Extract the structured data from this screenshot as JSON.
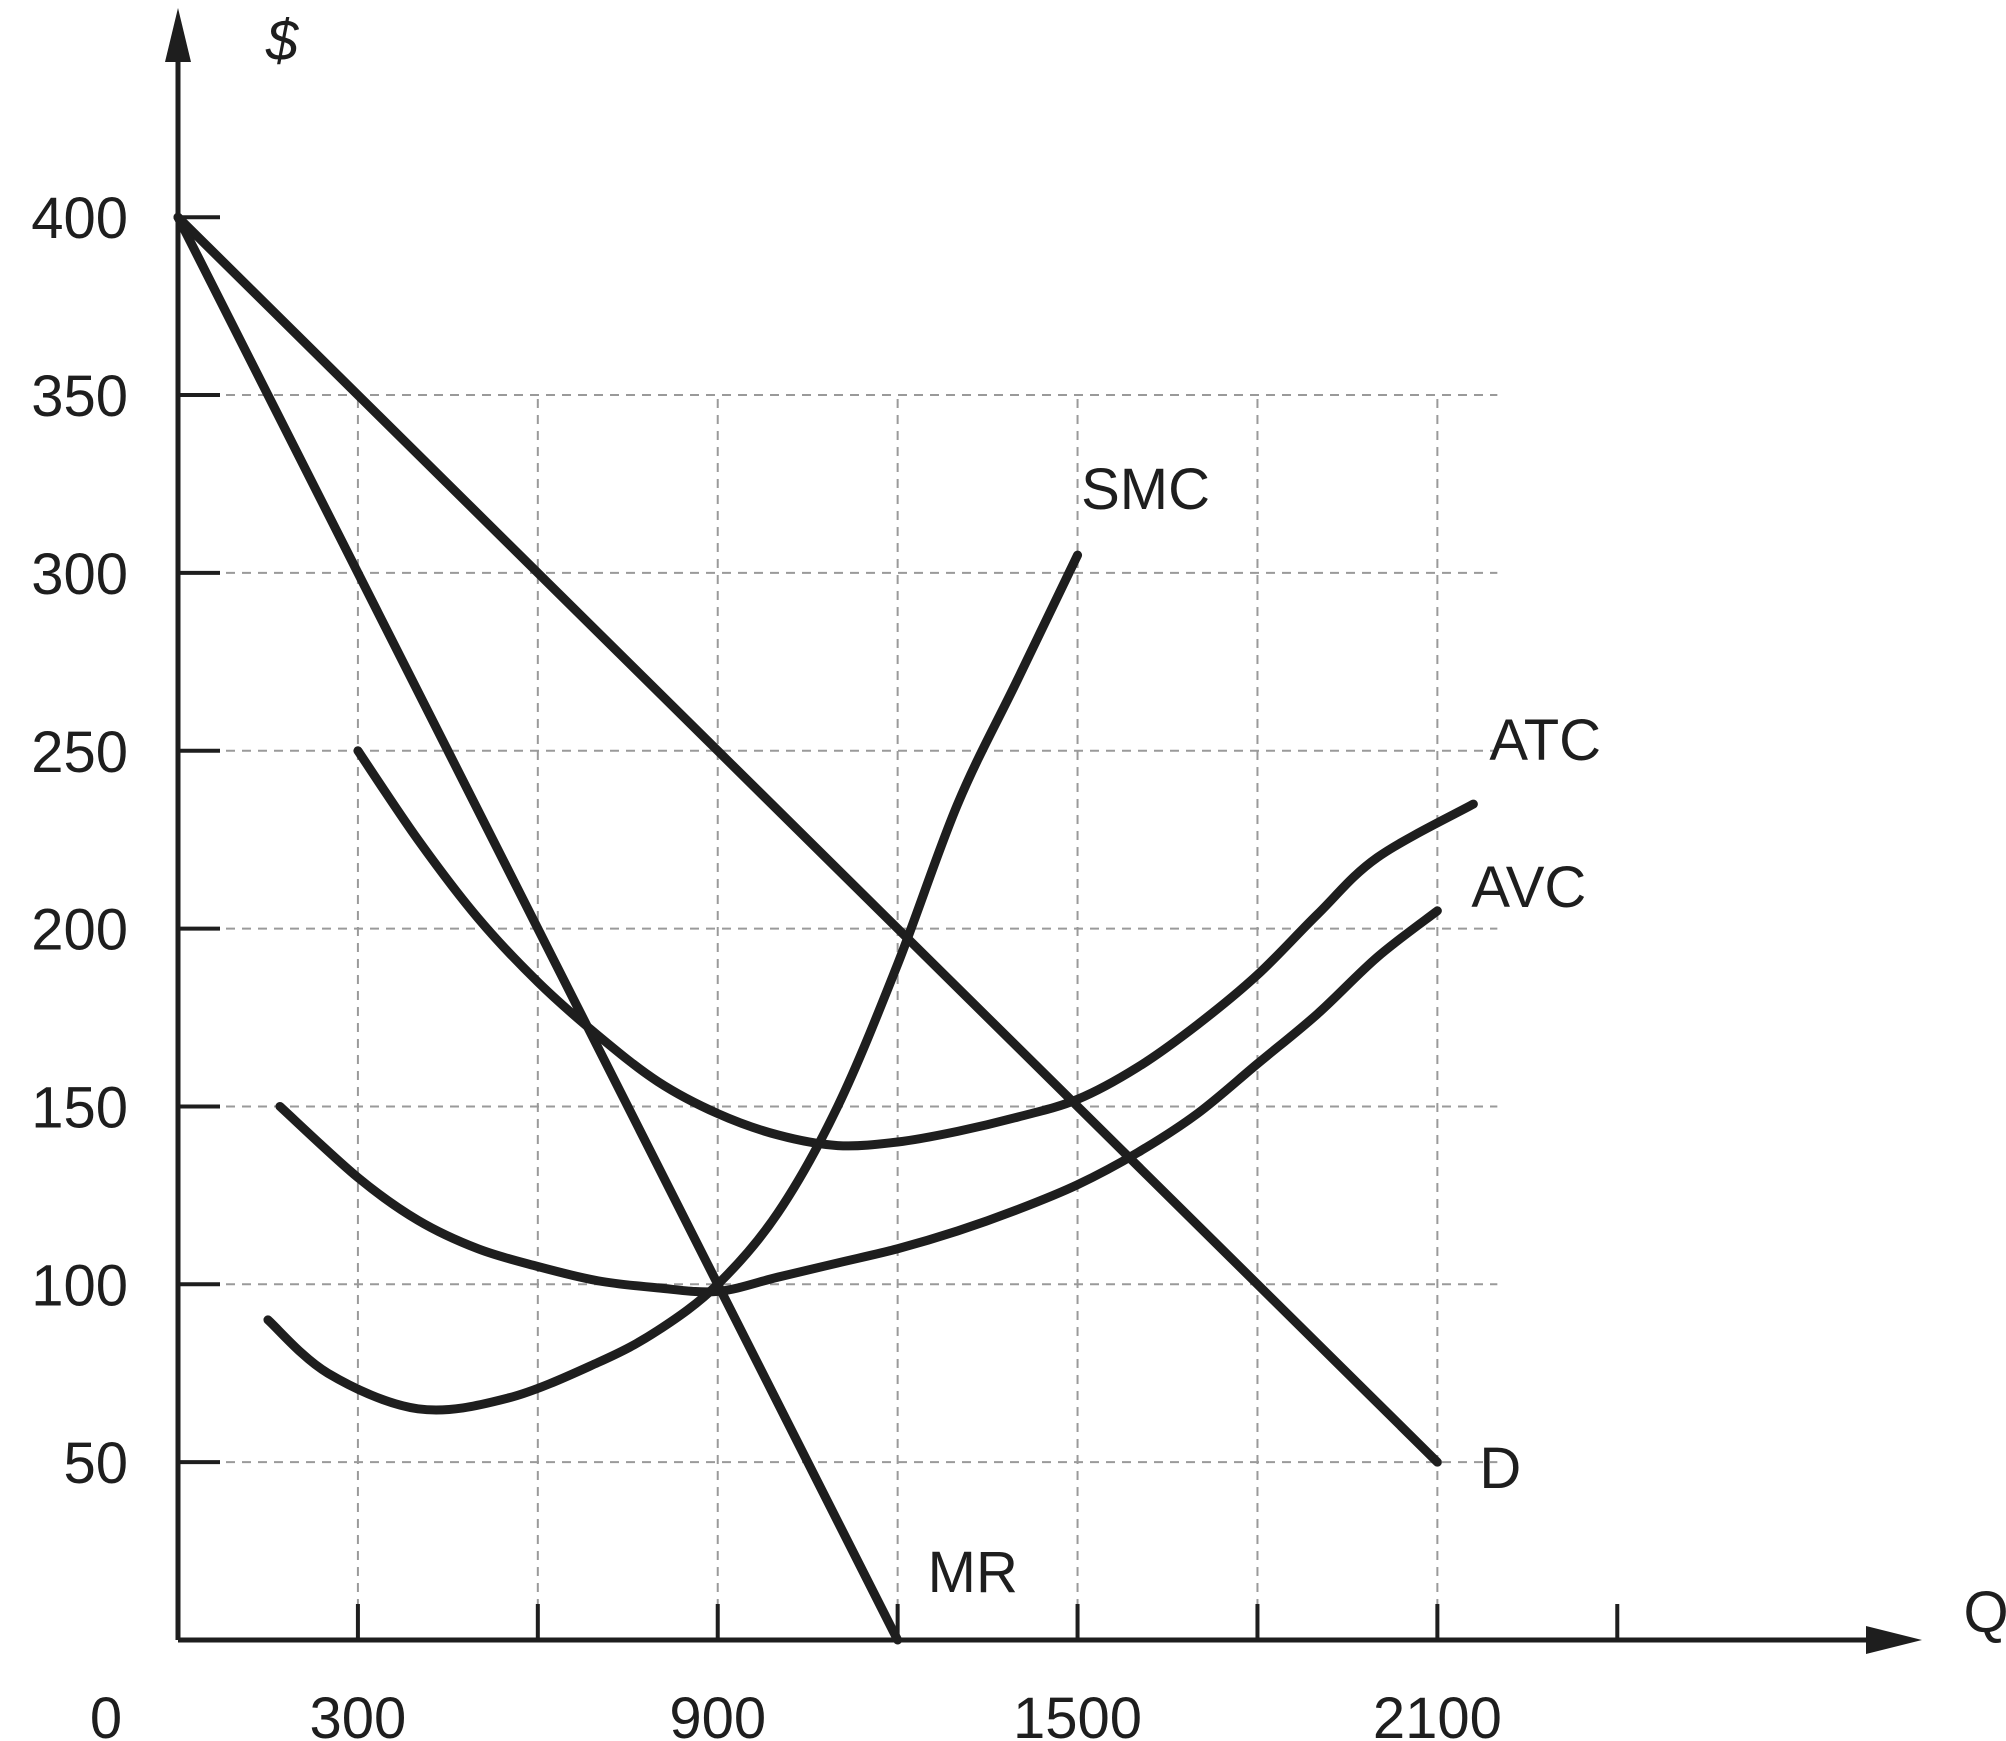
{
  "chart_data": {
    "type": "line",
    "xlabel": "Q",
    "ylabel": "$",
    "origin_label": "0",
    "xlim": [
      0,
      2400
    ],
    "ylim": [
      0,
      400
    ],
    "x_ticks": [
      300,
      600,
      900,
      1200,
      1500,
      1800,
      2100,
      2400
    ],
    "x_tick_labels": [
      {
        "x": 300,
        "label": "300"
      },
      {
        "x": 900,
        "label": "900"
      },
      {
        "x": 1500,
        "label": "1500"
      },
      {
        "x": 2100,
        "label": "2100"
      }
    ],
    "y_ticks": [
      50,
      100,
      150,
      200,
      250,
      300,
      350,
      400
    ],
    "y_tick_labels": [
      "50",
      "100",
      "150",
      "200",
      "250",
      "300",
      "350",
      "400"
    ],
    "grid": {
      "vertical_x": [
        300,
        600,
        900,
        1200,
        1500,
        1800,
        2100
      ],
      "horizontal_y": [
        50,
        100,
        150,
        200,
        250,
        300,
        350
      ],
      "x_extent": 2200,
      "y_extent": 350
    },
    "series": [
      {
        "name": "D",
        "points": [
          [
            0,
            400
          ],
          [
            2100,
            50
          ]
        ]
      },
      {
        "name": "MR",
        "points": [
          [
            0,
            400
          ],
          [
            1200,
            0
          ]
        ]
      },
      {
        "name": "SMC",
        "points": [
          [
            150,
            90
          ],
          [
            250,
            75
          ],
          [
            400,
            65
          ],
          [
            550,
            68
          ],
          [
            700,
            78
          ],
          [
            800,
            87
          ],
          [
            900,
            100
          ],
          [
            1000,
            120
          ],
          [
            1100,
            150
          ],
          [
            1200,
            190
          ],
          [
            1300,
            235
          ],
          [
            1400,
            270
          ],
          [
            1500,
            305
          ]
        ]
      },
      {
        "name": "ATC",
        "points": [
          [
            300,
            250
          ],
          [
            400,
            225
          ],
          [
            500,
            203
          ],
          [
            600,
            185
          ],
          [
            700,
            170
          ],
          [
            800,
            157
          ],
          [
            900,
            148
          ],
          [
            1000,
            142
          ],
          [
            1100,
            139
          ],
          [
            1200,
            140
          ],
          [
            1300,
            143
          ],
          [
            1400,
            147
          ],
          [
            1500,
            152
          ],
          [
            1600,
            161
          ],
          [
            1700,
            173
          ],
          [
            1800,
            187
          ],
          [
            1900,
            204
          ],
          [
            2000,
            220
          ],
          [
            2160,
            235
          ]
        ]
      },
      {
        "name": "AVC",
        "points": [
          [
            170,
            150
          ],
          [
            300,
            130
          ],
          [
            400,
            118
          ],
          [
            500,
            110
          ],
          [
            600,
            105
          ],
          [
            700,
            101
          ],
          [
            800,
            99
          ],
          [
            900,
            98
          ],
          [
            1000,
            102
          ],
          [
            1100,
            106
          ],
          [
            1200,
            110
          ],
          [
            1300,
            115
          ],
          [
            1400,
            121
          ],
          [
            1500,
            128
          ],
          [
            1600,
            137
          ],
          [
            1700,
            148
          ],
          [
            1800,
            162
          ],
          [
            1900,
            176
          ],
          [
            2000,
            192
          ],
          [
            2100,
            205
          ]
        ]
      }
    ]
  }
}
